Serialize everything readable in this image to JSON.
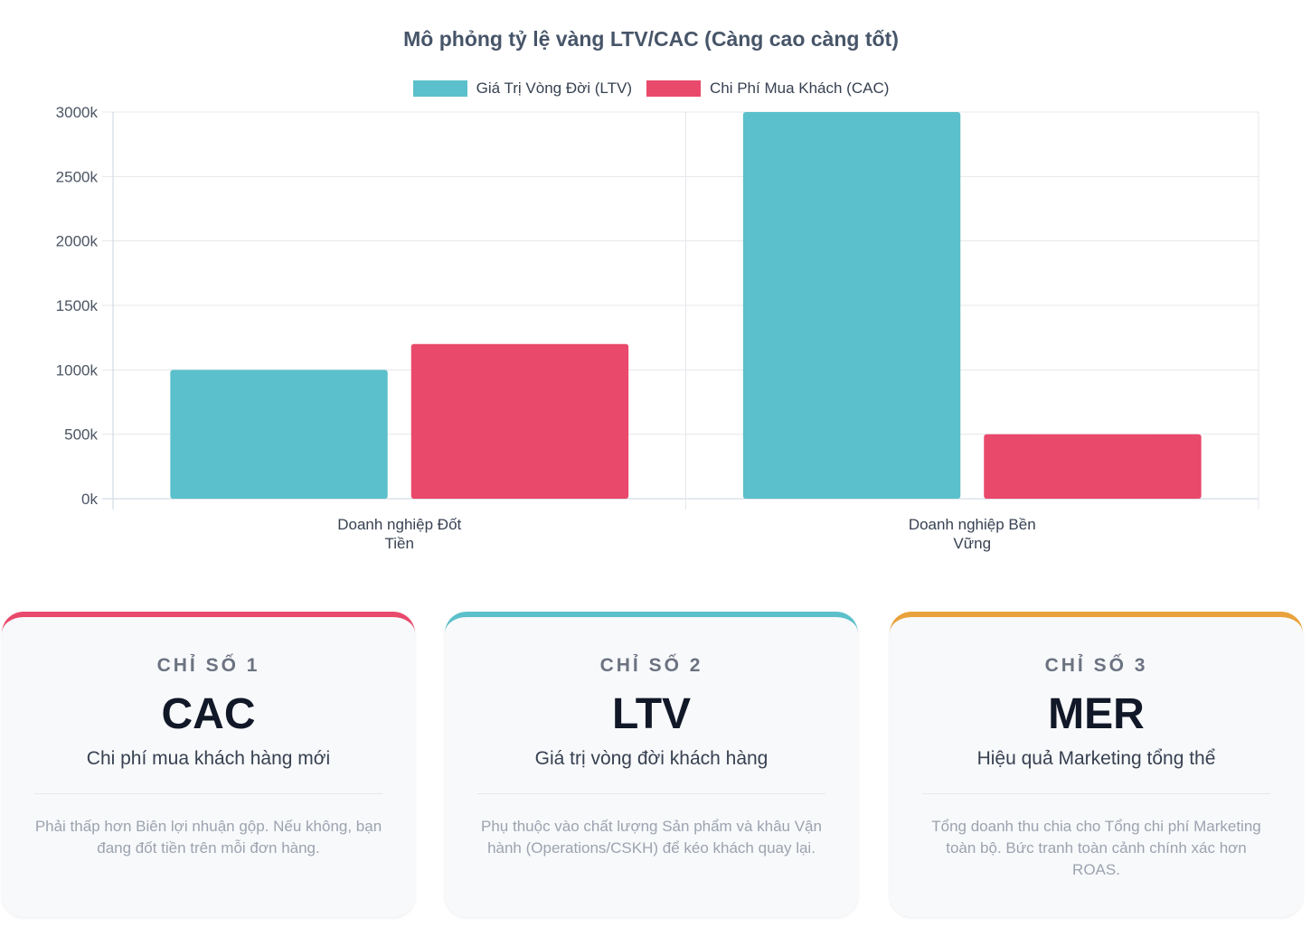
{
  "chart_data": {
    "type": "bar",
    "title": "Mô phỏng tỷ lệ vàng LTV/CAC (Càng cao càng tốt)",
    "categories": [
      [
        "Doanh nghiệp Đốt",
        "Tiền"
      ],
      [
        "Doanh nghiệp Bền",
        "Vững"
      ]
    ],
    "series": [
      {
        "name": "Giá Trị Vòng Đời (LTV)",
        "values": [
          1000,
          3000
        ],
        "color": "#5bc0cb"
      },
      {
        "name": "Chi Phí Mua Khách (CAC)",
        "values": [
          1200,
          500
        ],
        "color": "#e9496b"
      }
    ],
    "ylim": [
      0,
      3000
    ],
    "yticks": [
      0,
      500,
      1000,
      1500,
      2000,
      2500,
      3000
    ],
    "ytick_labels": [
      "0k",
      "500k",
      "1000k",
      "1500k",
      "2000k",
      "2500k",
      "3000k"
    ],
    "grid": true,
    "legend_position": "top-center"
  },
  "cards": [
    {
      "eyebrow": "CHỈ SỐ 1",
      "metric": "CAC",
      "subtitle": "Chi phí mua khách hàng mới",
      "description": "Phải thấp hơn Biên lợi nhuận gộp. Nếu không, bạn đang đốt tiền trên mỗi đơn hàng.",
      "accent": "#e9496b"
    },
    {
      "eyebrow": "CHỈ SỐ 2",
      "metric": "LTV",
      "subtitle": "Giá trị vòng đời khách hàng",
      "description": "Phụ thuộc vào chất lượng Sản phẩm và khâu Vận hành (Operations/CSKH) để kéo khách quay lại.",
      "accent": "#5bc0cb"
    },
    {
      "eyebrow": "CHỈ SỐ 3",
      "metric": "MER",
      "subtitle": "Hiệu quả Marketing tổng thể",
      "description": "Tổng doanh thu chia cho Tổng chi phí Marketing toàn bộ. Bức tranh toàn cảnh chính xác hơn ROAS.",
      "accent": "#e9a23b"
    }
  ]
}
